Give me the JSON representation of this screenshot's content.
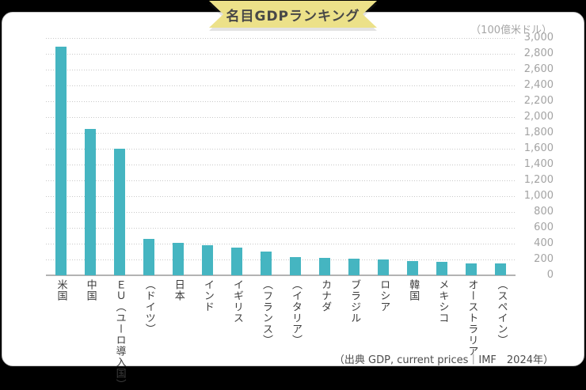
{
  "page": {
    "title": "名目GDPランキング",
    "source_note": "（出典 GDP, current prices｜IMF　2024年）"
  },
  "chart_data": {
    "type": "bar",
    "title": "名目GDPランキング",
    "unit_label": "（100億米ドル）",
    "categories": [
      "米国",
      "中国",
      "ＥＵ（ユーロ導入国）",
      "（ドイツ）",
      "日本",
      "インド",
      "イギリス",
      "（フランス）",
      "（イタリア）",
      "カナダ",
      "ブラジル",
      "ロシア",
      "韓国",
      "メキシコ",
      "オーストラリア",
      "（スペイン）"
    ],
    "values": [
      2890,
      1850,
      1600,
      460,
      415,
      385,
      355,
      300,
      235,
      225,
      210,
      205,
      178,
      173,
      152,
      148
    ],
    "xlabel": "",
    "ylabel": "（100億米ドル）",
    "ylim": [
      0,
      3000
    ],
    "ytick_step": 200,
    "grid": "horizontal-dotted",
    "legend": "none",
    "y_axis_position": "right",
    "bar_color": "#45b5c1",
    "source": "（出典 GDP, current prices｜IMF　2024年）"
  },
  "colors": {
    "background": "#000000",
    "card": "#ffffff",
    "card_border": "#c9c9c9",
    "ribbon": "#ece189",
    "bar": "#45b5c1",
    "gridline": "#c8c8c8",
    "axis_line": "#b3b3b3",
    "tick_text": "#a3a3a3",
    "category_text": "#3c3c3c"
  }
}
